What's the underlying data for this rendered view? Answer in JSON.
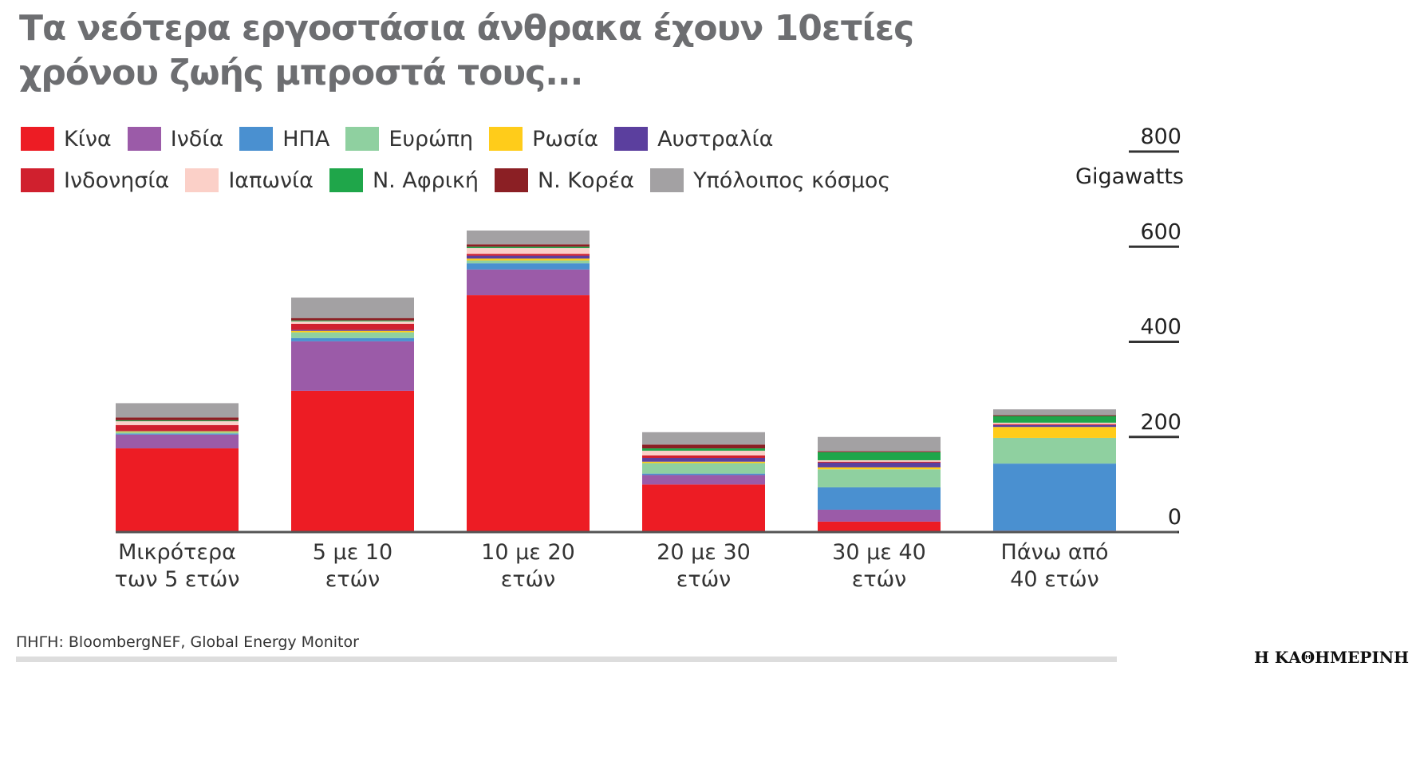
{
  "chart_data": {
    "type": "stacked_bar",
    "title": "Τα νεότερα εργοστάσια άνθρακα έχουν 10ετίες\nχρόνου ζωής μπροστά τους...",
    "y_label": "Gigawatts",
    "categories": [
      "Μικρότερα\nτων 5 ετών",
      "5 με 10\nετών",
      "10 με 20\nετών",
      "20 με 30\nετών",
      "30 με 40\nετών",
      "Πάνω από\n40 ετών"
    ],
    "series": [
      {
        "name": "Κίνα",
        "color": "#ed1c24",
        "values": [
          176,
          297,
          498,
          100,
          22,
          1
        ]
      },
      {
        "name": "Ινδία",
        "color": "#9b5ba8",
        "values": [
          29,
          104,
          54,
          20,
          25,
          2
        ]
      },
      {
        "name": "ΗΠΑ",
        "color": "#4a90d0",
        "values": [
          2,
          7,
          13,
          3,
          47,
          141
        ]
      },
      {
        "name": "Ευρώπη",
        "color": "#8fd0a0",
        "values": [
          3,
          12,
          6,
          22,
          38,
          54
        ]
      },
      {
        "name": "Ρωσία",
        "color": "#ffcc1a",
        "values": [
          2,
          3,
          4,
          3,
          4,
          23
        ]
      },
      {
        "name": "Αυστραλία",
        "color": "#5b3f9e",
        "values": [
          1,
          2,
          6,
          8,
          10,
          4
        ]
      },
      {
        "name": "Ινδονησία",
        "color": "#d0202e",
        "values": [
          12,
          13,
          4,
          5,
          2,
          2
        ]
      },
      {
        "name": "Ιαπωνία",
        "color": "#fbd0c8",
        "values": [
          8,
          5,
          12,
          10,
          3,
          3
        ]
      },
      {
        "name": "Ν. Αφρική",
        "color": "#1fa64a",
        "values": [
          2,
          2,
          3,
          5,
          17,
          14
        ]
      },
      {
        "name": "Ν. Κορέα",
        "color": "#8b1f24",
        "values": [
          6,
          5,
          5,
          8,
          2,
          2
        ]
      },
      {
        "name": "Υπόλοιπος κόσμος",
        "color": "#a3a1a3",
        "values": [
          30,
          43,
          29,
          26,
          30,
          12
        ]
      }
    ],
    "ylim": [
      0,
      800
    ],
    "yticks": [
      0,
      200,
      400,
      600,
      800
    ],
    "source": "ΠΗΓΗ: BloombergNEF, Global Energy Monitor",
    "brand": "Η ΚΑΘΗΜΕΡΙΝΗ"
  }
}
